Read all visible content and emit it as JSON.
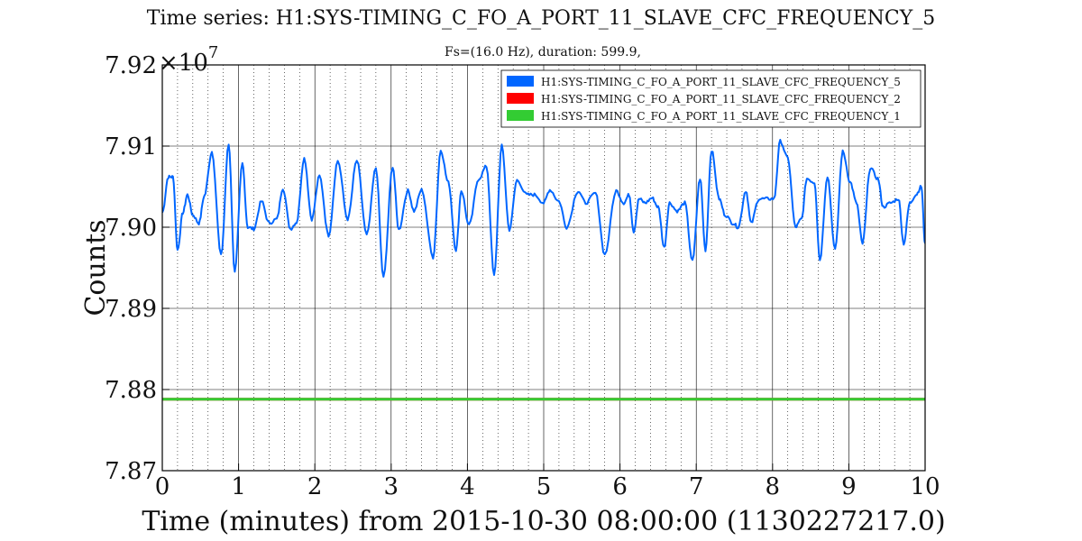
{
  "chart_data": {
    "type": "line",
    "title": "Time series: H1:SYS-TIMING_C_FO_A_PORT_11_SLAVE_CFC_FREQUENCY_5",
    "subtitle": "Fs=(16.0 Hz), duration: 599.9,",
    "xlabel": "Time (minutes) from 2015-10-30 08:00:00 (1130227217.0)",
    "ylabel": "Counts",
    "xlim": [
      0,
      10
    ],
    "ylim": [
      7.87,
      7.92
    ],
    "y_multiplier_label": "×10",
    "y_multiplier_exponent": "7",
    "x_ticks": [
      "0",
      "1",
      "2",
      "3",
      "4",
      "5",
      "6",
      "7",
      "8",
      "9",
      "10"
    ],
    "y_ticks": [
      "7.87",
      "7.88",
      "7.89",
      "7.90",
      "7.91",
      "7.92"
    ],
    "grid": true,
    "legend_position": "top-right",
    "series": [
      {
        "name": "H1:SYS-TIMING_C_FO_A_PORT_11_SLAVE_CFC_FREQUENCY_5",
        "color": "#0066ff",
        "x": [
          0,
          0.08,
          0.14,
          0.2,
          0.27,
          0.33,
          0.4,
          0.48,
          0.55,
          0.65,
          0.77,
          0.87,
          0.95,
          1.05,
          1.12,
          1.2,
          1.3,
          1.4,
          1.5,
          1.58,
          1.68,
          1.76,
          1.86,
          1.96,
          2.06,
          2.18,
          2.3,
          2.43,
          2.55,
          2.68,
          2.8,
          2.9,
          3.02,
          3.1,
          3.22,
          3.3,
          3.4,
          3.55,
          3.65,
          3.75,
          3.85,
          3.92,
          4.02,
          4.15,
          4.25,
          4.35,
          4.45,
          4.55,
          4.65,
          4.78,
          4.88,
          5.0,
          5.08,
          5.2,
          5.3,
          5.45,
          5.55,
          5.68,
          5.8,
          5.95,
          6.05,
          6.12,
          6.18,
          6.25,
          6.33,
          6.42,
          6.5,
          6.58,
          6.65,
          6.75,
          6.85,
          6.95,
          7.05,
          7.12,
          7.2,
          7.3,
          7.38,
          7.48,
          7.55,
          7.65,
          7.72,
          7.82,
          7.92,
          8.02,
          8.1,
          8.2,
          8.3,
          8.38,
          8.45,
          8.55,
          8.62,
          8.72,
          8.82,
          8.92,
          9.02,
          9.1,
          9.18,
          9.28,
          9.38,
          9.45,
          9.55,
          9.65,
          9.72,
          9.8,
          9.88,
          9.95,
          10
        ],
        "values": [
          7.9018,
          7.9062,
          7.9062,
          7.8972,
          7.9018,
          7.904,
          7.9015,
          7.9005,
          7.9038,
          7.9093,
          7.8965,
          7.9102,
          7.8946,
          7.9078,
          7.9,
          7.8998,
          7.9032,
          7.9005,
          7.901,
          7.9048,
          7.8998,
          7.9006,
          7.9085,
          7.901,
          7.9063,
          7.899,
          7.9082,
          7.901,
          7.9082,
          7.899,
          7.9073,
          7.8938,
          7.9075,
          7.8997,
          7.9045,
          7.902,
          7.9046,
          7.8963,
          7.9095,
          7.9055,
          7.8972,
          7.9045,
          7.9002,
          7.906,
          7.9075,
          7.894,
          7.91,
          7.8997,
          7.9058,
          7.904,
          7.904,
          7.903,
          7.9046,
          7.9032,
          7.9,
          7.9045,
          7.903,
          7.9042,
          7.8966,
          7.9045,
          7.903,
          7.904,
          7.8995,
          7.9035,
          7.903,
          7.9036,
          7.9025,
          7.8975,
          7.903,
          7.902,
          7.903,
          7.8958,
          7.906,
          7.8972,
          7.9095,
          7.9035,
          7.9015,
          7.9005,
          7.9,
          7.9045,
          7.9005,
          7.9035,
          7.9035,
          7.9035,
          7.9106,
          7.9085,
          7.9,
          7.901,
          7.906,
          7.9055,
          7.896,
          7.9063,
          7.8972,
          7.9093,
          7.9055,
          7.903,
          7.898,
          7.9073,
          7.906,
          7.9025,
          7.903,
          7.9035,
          7.898,
          7.903,
          7.904,
          7.905,
          7.898
        ]
      },
      {
        "name": "H1:SYS-TIMING_C_FO_A_PORT_11_SLAVE_CFC_FREQUENCY_2",
        "color": "#ff0000",
        "x": [
          0,
          10
        ],
        "values": [
          7.8788,
          7.8788
        ]
      },
      {
        "name": "H1:SYS-TIMING_C_FO_A_PORT_11_SLAVE_CFC_FREQUENCY_1",
        "color": "#33cc33",
        "x": [
          0,
          10
        ],
        "values": [
          7.8788,
          7.8788
        ]
      }
    ]
  }
}
